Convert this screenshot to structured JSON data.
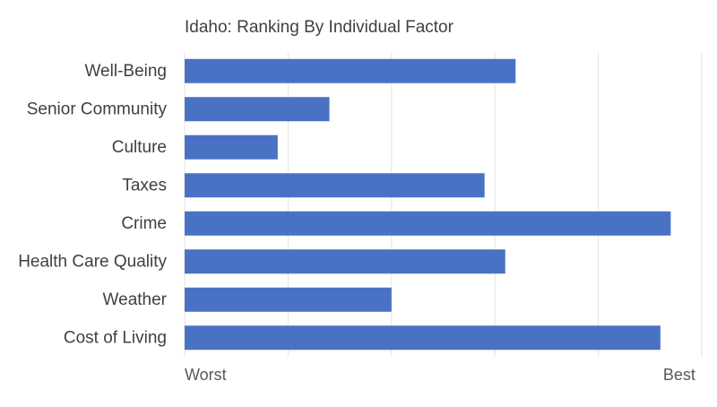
{
  "chart_data": {
    "type": "bar",
    "orientation": "horizontal",
    "title": "Idaho: Ranking By Individual Factor",
    "categories": [
      "Well-Being",
      "Senior Community",
      "Culture",
      "Taxes",
      "Crime",
      "Health Care Quality",
      "Weather",
      "Cost of Living"
    ],
    "values": [
      3.2,
      1.4,
      0.9,
      2.9,
      4.7,
      3.1,
      2.0,
      4.6
    ],
    "xlim": [
      0,
      5
    ],
    "x_tick_labels": [
      {
        "value": 0,
        "label": "Worst"
      },
      {
        "value": 4.8,
        "label": "Best"
      }
    ],
    "gridlines": [
      0,
      1,
      2,
      3,
      4,
      5
    ],
    "grid": true,
    "legend": false,
    "bar_color": "#4a72c4",
    "grid_color": "#e3e3e3"
  }
}
